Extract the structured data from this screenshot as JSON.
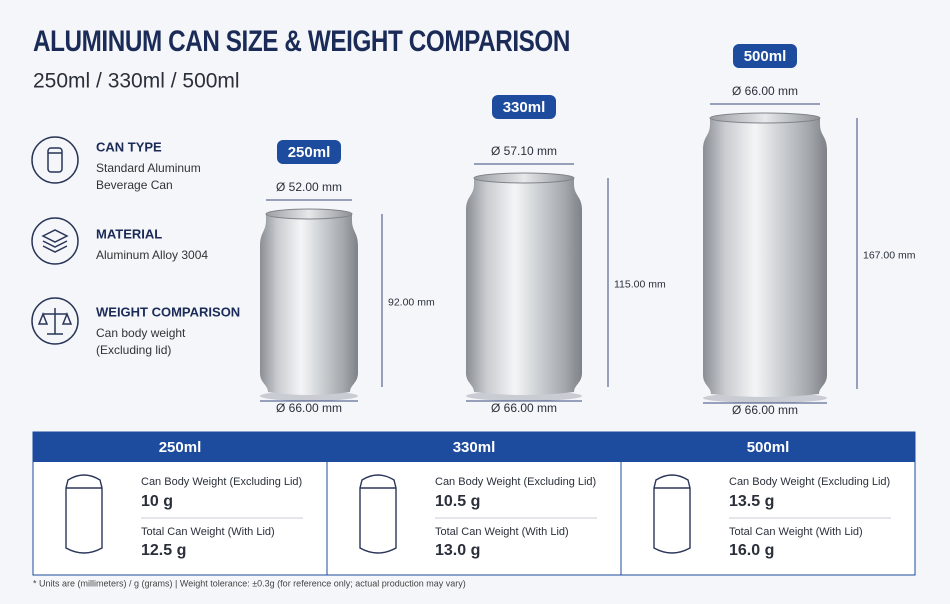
{
  "header": {
    "title": "ALUMINUM CAN SIZE & WEIGHT COMPARISON",
    "subtitle": "250ml / 330ml / 500ml"
  },
  "features": [
    {
      "title": "CAN TYPE",
      "lines": [
        "Standard Aluminum",
        "Beverage Can"
      ]
    },
    {
      "title": "MATERIAL",
      "lines": [
        "Aluminum Alloy 3004"
      ]
    },
    {
      "title": "WEIGHT COMPARISON",
      "lines": [
        "Can body weight",
        "(Excluding lid)"
      ]
    }
  ],
  "cans": [
    {
      "label": "250ml",
      "top_diameter": "Ø 52.00 mm",
      "height": "92.00 mm",
      "bottom_diameter": "Ø 66.00 mm"
    },
    {
      "label": "330ml",
      "top_diameter": "Ø 57.10 mm",
      "height": "115.00 mm",
      "bottom_diameter": "Ø 66.00 mm"
    },
    {
      "label": "500ml",
      "top_diameter": "Ø 66.00 mm",
      "height": "167.00 mm",
      "bottom_diameter": "Ø 66.00 mm"
    }
  ],
  "table": {
    "columns": [
      {
        "header": "250ml",
        "body_weight_label": "Can Body Weight (Excluding Lid)",
        "body_weight": "10 g",
        "total_weight_label": "Total Can Weight (With Lid)",
        "total_weight": "12.5 g"
      },
      {
        "header": "330ml",
        "body_weight_label": "Can Body Weight (Excluding Lid)",
        "body_weight": "10.5 g",
        "total_weight_label": "Total Can Weight (With Lid)",
        "total_weight": "13.0 g"
      },
      {
        "header": "500ml",
        "body_weight_label": "Can Body Weight (Excluding Lid)",
        "body_weight": "13.5 g",
        "total_weight_label": "Total Can Weight (With Lid)",
        "total_weight": "16.0 g"
      }
    ]
  },
  "footnote": "* Units are (millimeters) / g (grams)   |   Weight tolerance: ±0.3g (for reference only; actual production may vary)"
}
